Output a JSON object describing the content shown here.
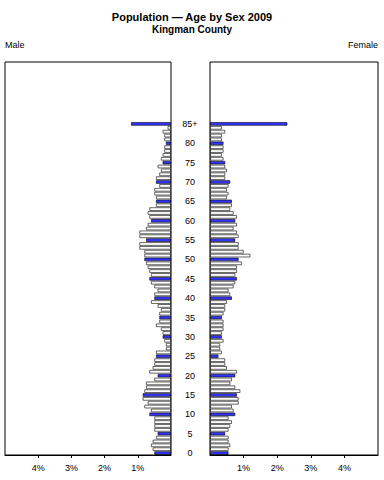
{
  "chart_data": {
    "type": "bar",
    "orientation": "horizontal",
    "title": "Population — Age by Sex 2009",
    "subtitle": "Kingman County",
    "categories": [
      "0",
      null,
      null,
      null,
      null,
      "5",
      null,
      null,
      null,
      null,
      "10",
      null,
      null,
      null,
      null,
      "15",
      null,
      null,
      null,
      null,
      "20",
      null,
      null,
      null,
      null,
      "25",
      null,
      null,
      null,
      null,
      "30",
      null,
      null,
      null,
      null,
      "35",
      null,
      null,
      null,
      null,
      "40",
      null,
      null,
      null,
      null,
      "45",
      null,
      null,
      null,
      null,
      "50",
      null,
      null,
      null,
      null,
      "55",
      null,
      null,
      null,
      null,
      "60",
      null,
      null,
      null,
      null,
      "65",
      null,
      null,
      null,
      null,
      "70",
      null,
      null,
      null,
      null,
      "75",
      null,
      null,
      null,
      null,
      "80",
      null,
      null,
      null,
      null,
      "85+"
    ],
    "series": [
      {
        "name": "Male",
        "values": [
          0.5,
          0.55,
          0.6,
          0.55,
          0.45,
          0.4,
          0.5,
          0.5,
          0.5,
          0.5,
          0.65,
          0.6,
          0.8,
          0.7,
          0.85,
          0.85,
          0.8,
          0.75,
          0.75,
          0.5,
          0.4,
          0.65,
          0.55,
          0.5,
          0.5,
          0.45,
          0.45,
          0.15,
          0.15,
          0.2,
          0.25,
          0.25,
          0.3,
          0.45,
          0.35,
          0.35,
          0.35,
          0.3,
          0.4,
          0.6,
          0.5,
          0.5,
          0.4,
          0.5,
          0.6,
          0.65,
          0.6,
          0.65,
          0.7,
          0.75,
          0.8,
          0.8,
          0.8,
          0.95,
          0.95,
          0.75,
          0.95,
          0.95,
          0.75,
          0.7,
          0.6,
          0.65,
          0.7,
          0.65,
          0.45,
          0.45,
          0.45,
          0.5,
          0.5,
          0.35,
          0.45,
          0.45,
          0.35,
          0.3,
          0.4,
          0.25,
          0.3,
          0.25,
          0.2,
          0.2,
          0.15,
          0.2,
          0.2,
          0.25,
          0.1,
          1.2
        ],
        "colors": [
          "#3333ff",
          "#ffffff",
          "#ffffff",
          "#ffffff",
          "#ffffff",
          "#3333ff",
          "#ffffff",
          "#ffffff",
          "#ffffff",
          "#ffffff",
          "#3333ff",
          "#ffffff",
          "#ffffff",
          "#ffffff",
          "#ffffff",
          "#3333ff",
          "#ffffff",
          "#ffffff",
          "#ffffff",
          "#ffffff",
          "#3333ff",
          "#ffffff",
          "#ffffff",
          "#ffffff",
          "#ffffff",
          "#3333ff",
          "#ffffff",
          "#ffffff",
          "#ffffff",
          "#ffffff",
          "#3333ff",
          "#ffffff",
          "#ffffff",
          "#ffffff",
          "#ffffff",
          "#3333ff",
          "#ffffff",
          "#ffffff",
          "#ffffff",
          "#ffffff",
          "#3333ff",
          "#ffffff",
          "#ffffff",
          "#ffffff",
          "#ffffff",
          "#3333ff",
          "#ffffff",
          "#ffffff",
          "#ffffff",
          "#ffffff",
          "#3333ff",
          "#ffffff",
          "#ffffff",
          "#ffffff",
          "#ffffff",
          "#3333ff",
          "#ffffff",
          "#ffffff",
          "#ffffff",
          "#ffffff",
          "#3333ff",
          "#ffffff",
          "#ffffff",
          "#ffffff",
          "#ffffff",
          "#3333ff",
          "#ffffff",
          "#ffffff",
          "#ffffff",
          "#ffffff",
          "#3333ff",
          "#ffffff",
          "#ffffff",
          "#ffffff",
          "#ffffff",
          "#3333ff",
          "#ffffff",
          "#ffffff",
          "#ffffff",
          "#ffffff",
          "#3333ff",
          "#ffffff",
          "#ffffff",
          "#ffffff",
          "#ffffff",
          "#3333ff"
        ]
      },
      {
        "name": "Female",
        "values": [
          0.55,
          0.55,
          0.6,
          0.55,
          0.55,
          0.45,
          0.55,
          0.6,
          0.65,
          0.55,
          0.75,
          0.7,
          0.65,
          0.85,
          0.85,
          0.8,
          0.9,
          0.75,
          0.6,
          0.65,
          0.75,
          0.8,
          0.5,
          0.45,
          0.45,
          0.25,
          0.35,
          0.3,
          0.3,
          0.4,
          0.35,
          0.35,
          0.4,
          0.4,
          0.4,
          0.35,
          0.4,
          0.45,
          0.45,
          0.5,
          0.65,
          0.6,
          0.55,
          0.7,
          0.75,
          0.8,
          0.75,
          0.8,
          0.8,
          0.95,
          0.85,
          1.2,
          1.0,
          0.85,
          0.85,
          0.75,
          0.85,
          0.8,
          0.7,
          0.8,
          0.75,
          0.8,
          0.7,
          0.6,
          0.65,
          0.65,
          0.5,
          0.55,
          0.5,
          0.55,
          0.6,
          0.45,
          0.45,
          0.5,
          0.45,
          0.45,
          0.4,
          0.35,
          0.4,
          0.4,
          0.4,
          0.35,
          0.35,
          0.45,
          0.35,
          2.3
        ],
        "colors": [
          "#3333ff",
          "#ffffff",
          "#ffffff",
          "#ffffff",
          "#ffffff",
          "#3333ff",
          "#ffffff",
          "#ffffff",
          "#ffffff",
          "#ffffff",
          "#3333ff",
          "#ffffff",
          "#ffffff",
          "#ffffff",
          "#ffffff",
          "#3333ff",
          "#ffffff",
          "#ffffff",
          "#ffffff",
          "#ffffff",
          "#3333ff",
          "#ffffff",
          "#ffffff",
          "#ffffff",
          "#ffffff",
          "#3333ff",
          "#ffffff",
          "#ffffff",
          "#ffffff",
          "#ffffff",
          "#3333ff",
          "#ffffff",
          "#ffffff",
          "#ffffff",
          "#ffffff",
          "#3333ff",
          "#ffffff",
          "#ffffff",
          "#ffffff",
          "#ffffff",
          "#3333ff",
          "#ffffff",
          "#ffffff",
          "#ffffff",
          "#ffffff",
          "#3333ff",
          "#ffffff",
          "#ffffff",
          "#ffffff",
          "#ffffff",
          "#3333ff",
          "#ffffff",
          "#ffffff",
          "#ffffff",
          "#ffffff",
          "#3333ff",
          "#ffffff",
          "#ffffff",
          "#ffffff",
          "#ffffff",
          "#3333ff",
          "#ffffff",
          "#ffffff",
          "#ffffff",
          "#ffffff",
          "#3333ff",
          "#ffffff",
          "#ffffff",
          "#ffffff",
          "#ffffff",
          "#3333ff",
          "#ffffff",
          "#ffffff",
          "#ffffff",
          "#ffffff",
          "#3333ff",
          "#ffffff",
          "#ffffff",
          "#ffffff",
          "#ffffff",
          "#3333ff",
          "#ffffff",
          "#ffffff",
          "#ffffff",
          "#ffffff",
          "#3333ff"
        ]
      }
    ],
    "xlim": [
      0,
      5
    ],
    "xticks": [
      {
        "value": 1,
        "label": "1%"
      },
      {
        "value": 2,
        "label": "2%"
      },
      {
        "value": 3,
        "label": "3%"
      },
      {
        "value": 4,
        "label": "4%"
      }
    ],
    "grid": false
  }
}
